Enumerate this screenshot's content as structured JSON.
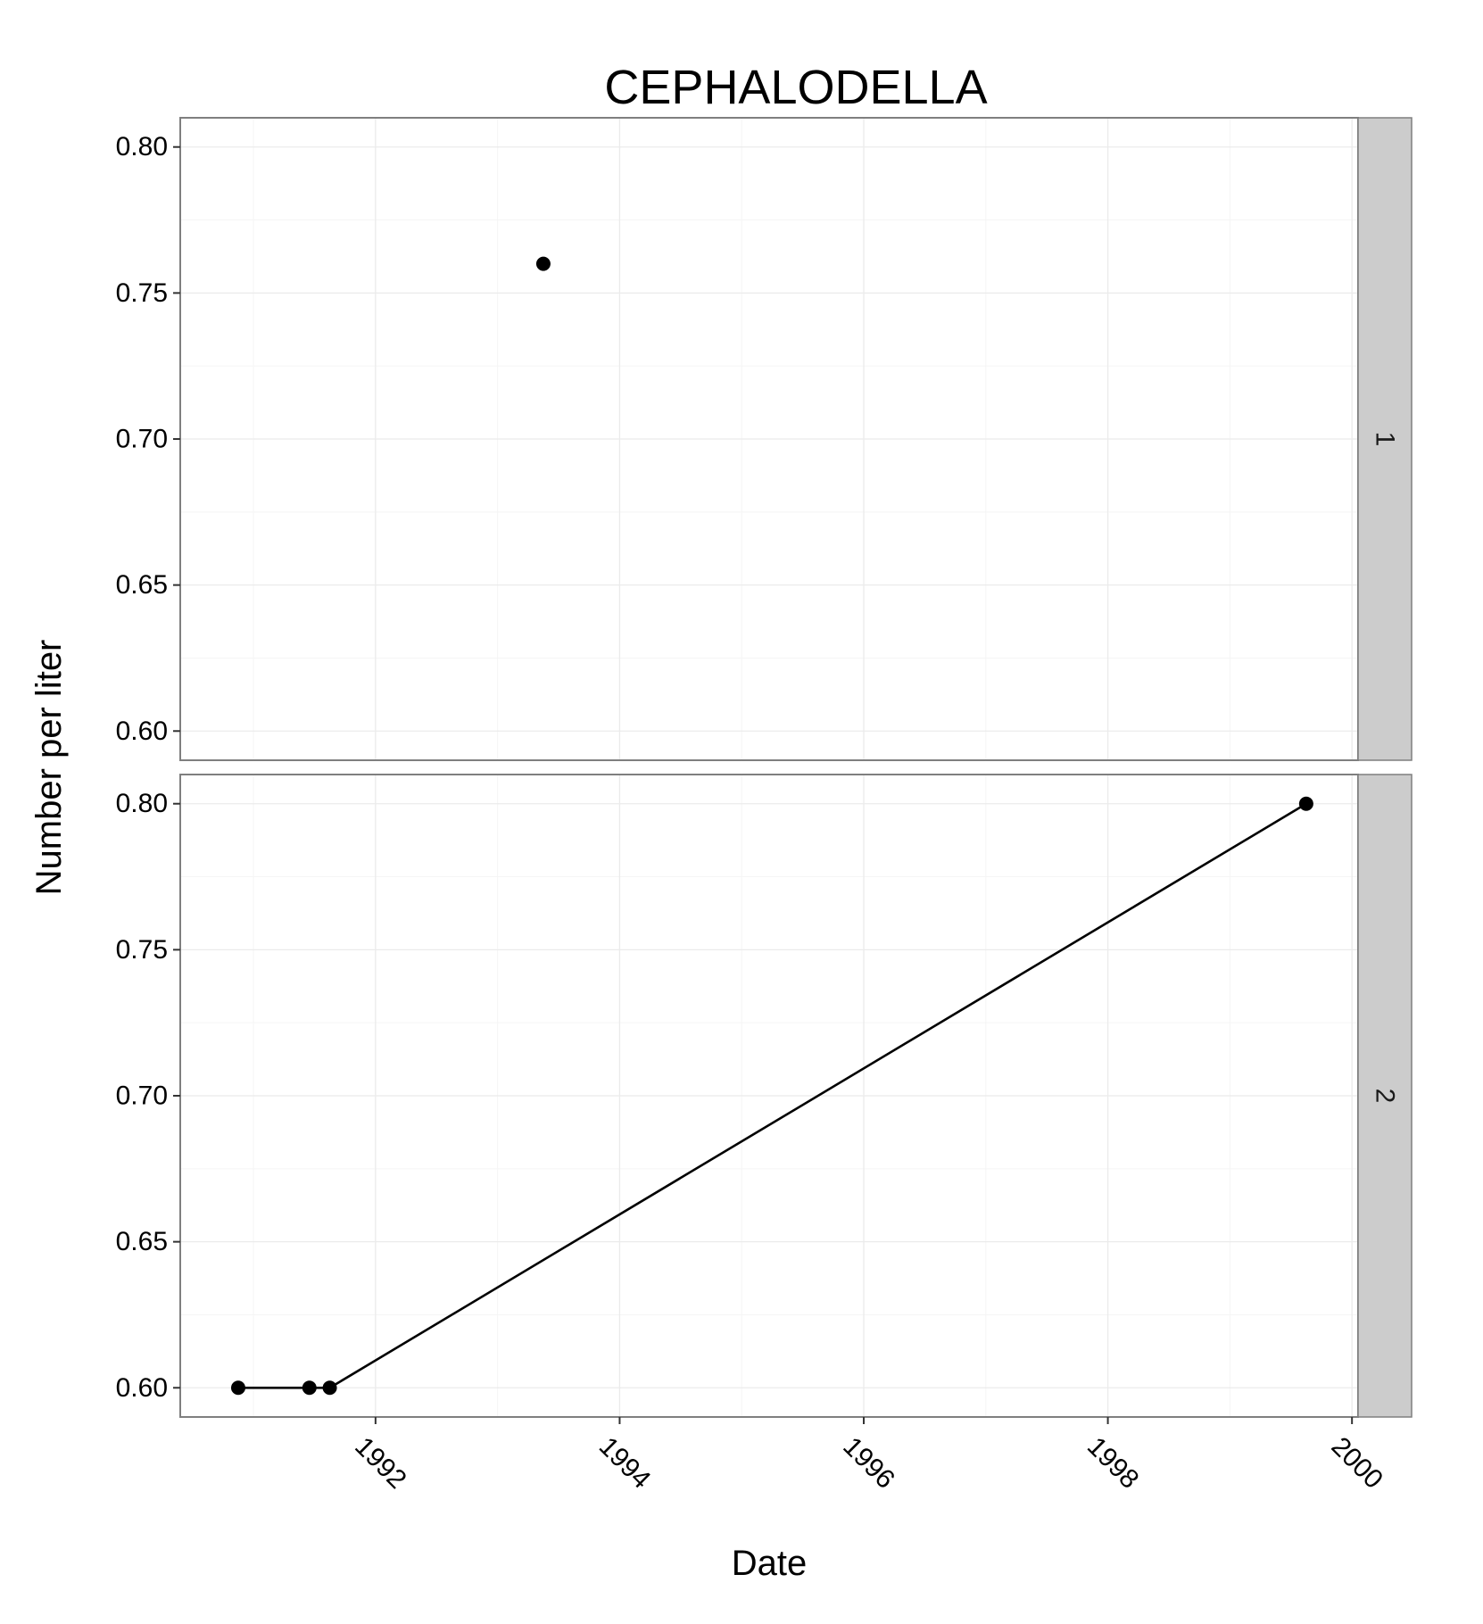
{
  "chart_data": {
    "type": "scatter",
    "title": "CEPHALODELLA",
    "xlabel": "Date",
    "ylabel": "Number per liter",
    "xlim": [
      1990.4,
      2000.05
    ],
    "ylim": [
      0.59,
      0.81
    ],
    "x_ticks": [
      1992,
      1994,
      1996,
      1998,
      2000
    ],
    "x_tick_labels": [
      "1992",
      "1994",
      "1996",
      "1998",
      "2000"
    ],
    "y_ticks": [
      0.6,
      0.65,
      0.7,
      0.75,
      0.8
    ],
    "y_tick_labels": [
      "0.60",
      "0.65",
      "0.70",
      "0.75",
      "0.80"
    ],
    "grid": true,
    "facets": [
      {
        "label": "1",
        "series": [
          {
            "connected": true,
            "points": [
              {
                "x": "1993-05",
                "y": 0.76
              }
            ]
          }
        ]
      },
      {
        "label": "2",
        "series": [
          {
            "connected": true,
            "points": [
              {
                "x": "1990-11",
                "y": 0.6
              },
              {
                "x": "1991-06",
                "y": 0.6
              },
              {
                "x": "1991-08",
                "y": 0.6
              },
              {
                "x": "1999-08",
                "y": 0.8
              }
            ]
          }
        ]
      }
    ],
    "colors": {
      "panel_border": "#7f7f7f",
      "grid_major": "#ebebeb",
      "grid_minor": "#f5f5f5",
      "strip_fill": "#cccccc",
      "marker": "#000000",
      "line": "#000000"
    }
  }
}
